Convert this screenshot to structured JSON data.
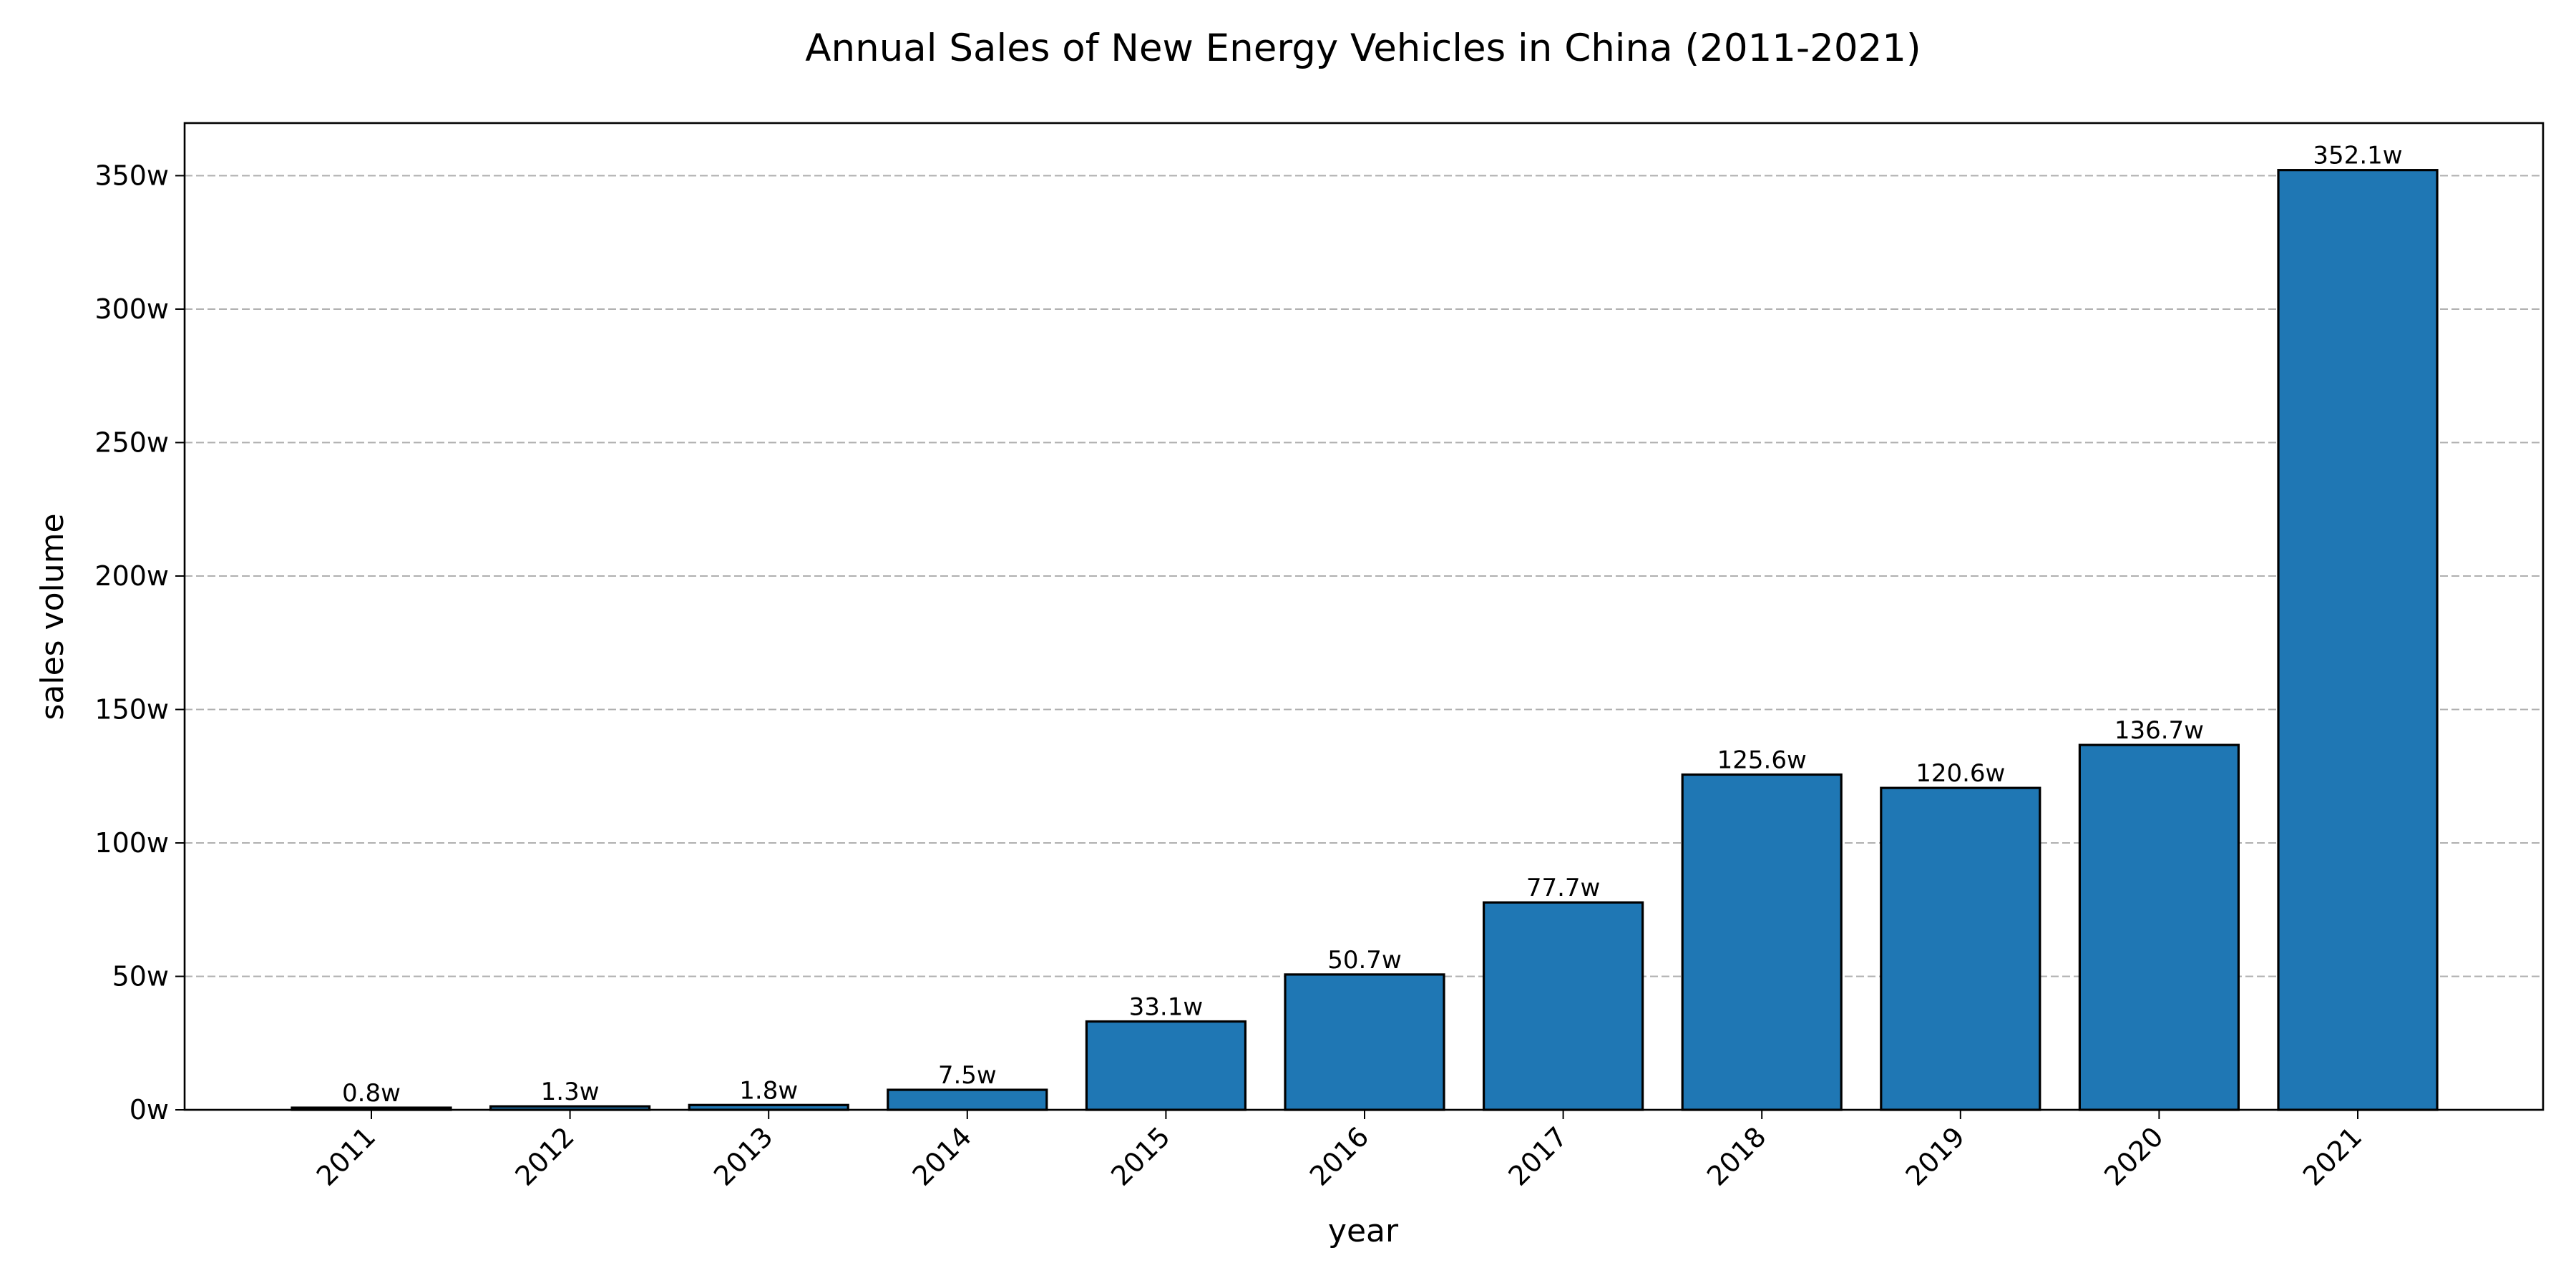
{
  "chart_data": {
    "type": "bar",
    "title": "Annual Sales of New Energy Vehicles in China (2011-2021)",
    "xlabel": "year",
    "ylabel": "sales volume",
    "categories": [
      "2011",
      "2012",
      "2013",
      "2014",
      "2015",
      "2016",
      "2017",
      "2018",
      "2019",
      "2020",
      "2021"
    ],
    "values": [
      0.8,
      1.3,
      1.8,
      7.5,
      33.1,
      50.7,
      77.7,
      125.6,
      120.6,
      136.7,
      352.1
    ],
    "data_labels": [
      "0.8w",
      "1.3w",
      "1.8w",
      "7.5w",
      "33.1w",
      "50.7w",
      "77.7w",
      "125.6w",
      "120.6w",
      "136.7w",
      "352.1w"
    ],
    "y_ticks": [
      0,
      50,
      100,
      150,
      200,
      250,
      300,
      350
    ],
    "y_tick_labels": [
      "0w",
      "50w",
      "100w",
      "150w",
      "200w",
      "250w",
      "300w",
      "350w"
    ],
    "ylim": [
      0,
      369.7
    ],
    "grid": "horizontal dashed",
    "legend": "none",
    "colors": {
      "bar": "#1f77b4",
      "bar_edge": "#000000",
      "grid": "#b0b0b0"
    }
  }
}
